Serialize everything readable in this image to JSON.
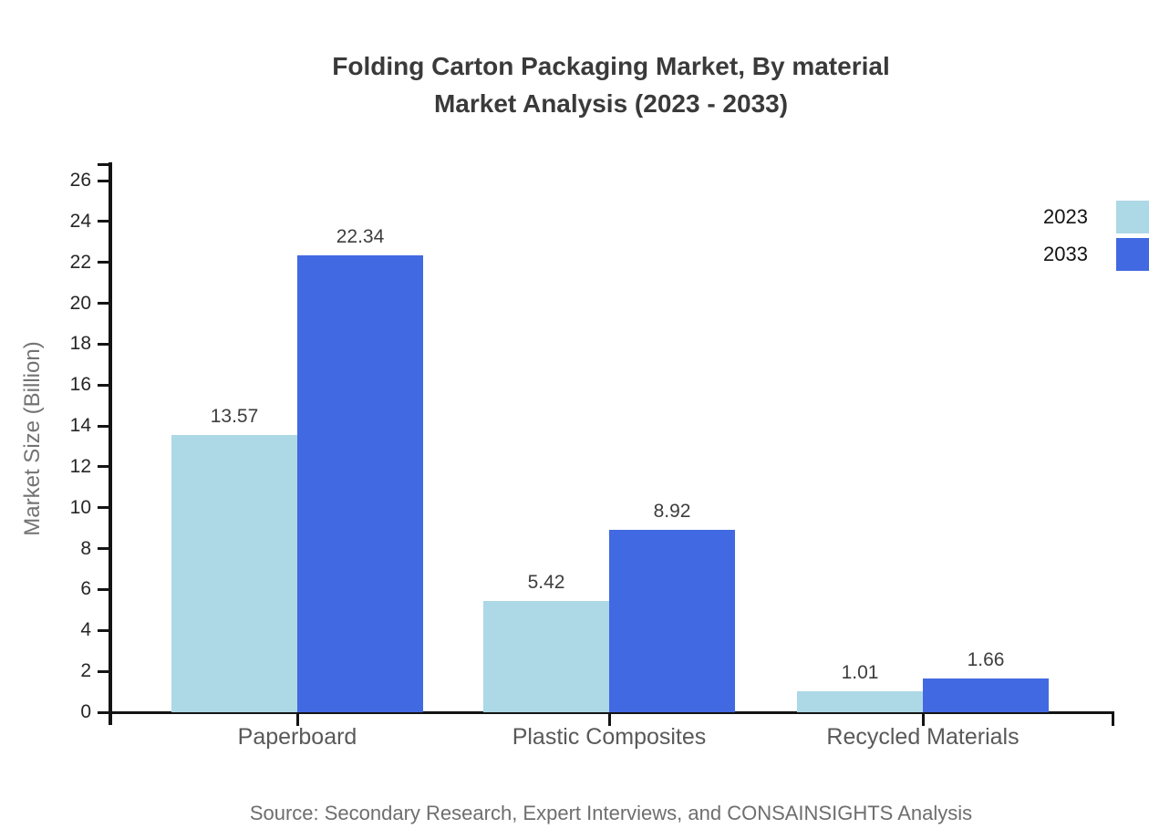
{
  "title": {
    "line1": "Folding Carton Packaging Market, By material",
    "line2": "Market Analysis (2023 - 2033)"
  },
  "source": "Source: Secondary Research, Expert Interviews, and CONSAINSIGHTS Analysis",
  "chart_data": {
    "type": "bar",
    "title": "Folding Carton Packaging Market, By material Market Analysis (2023 - 2033)",
    "categories": [
      "Paperboard",
      "Plastic Composites",
      "Recycled Materials"
    ],
    "series": [
      {
        "name": "2023",
        "color": "#add8e6",
        "values": [
          13.57,
          5.42,
          1.01
        ]
      },
      {
        "name": "2033",
        "color": "#4169e1",
        "values": [
          22.34,
          8.92,
          1.66
        ]
      }
    ],
    "value_labels": [
      "13.57",
      "22.34",
      "5.42",
      "8.92",
      "1.01",
      "1.66"
    ],
    "xlabel": "",
    "ylabel": "Market Size (Billion)",
    "ylim": [
      0,
      26
    ],
    "ytick_step": 2,
    "yticks": [
      0,
      2,
      4,
      6,
      8,
      10,
      12,
      14,
      16,
      18,
      20,
      22,
      24,
      26
    ],
    "grid": false,
    "legend_position": "top-right",
    "axis_color": "#141414"
  }
}
